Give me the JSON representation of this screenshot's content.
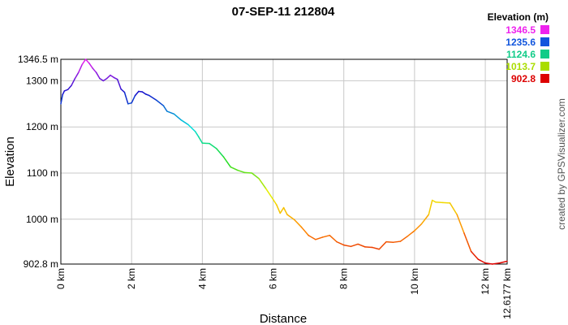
{
  "chart_data": {
    "type": "line",
    "title": "07-SEP-11 212804",
    "xlabel": "Distance",
    "ylabel": "Elevation",
    "credit": "created by GPSVisualizer.com",
    "xlim": [
      0,
      12.6177
    ],
    "ylim": [
      902.8,
      1346.5
    ],
    "x_ticks": [
      0,
      2,
      4,
      6,
      8,
      10,
      12,
      12.6177
    ],
    "x_tick_labels": [
      "0 km",
      "2 km",
      "4 km",
      "6 km",
      "8 km",
      "10 km",
      "12 km",
      "12.6177 km"
    ],
    "y_ticks": [
      902.8,
      1000,
      1100,
      1200,
      1300,
      1346.5
    ],
    "y_tick_labels": [
      "902.8 m",
      "1000 m",
      "1100 m",
      "1200 m",
      "1300 m",
      "1346.5 m"
    ],
    "grid": true,
    "legend": {
      "title": "Elevation (m)",
      "placement": "top-right",
      "entries": [
        {
          "label": "1346.5",
          "color": "#ee22ee"
        },
        {
          "label": "1235.6",
          "color": "#1155dd"
        },
        {
          "label": "1124.6",
          "color": "#11cc88"
        },
        {
          "label": "1013.7",
          "color": "#aadd00"
        },
        {
          "label": "902.8",
          "color": "#dd0000"
        }
      ]
    },
    "color_scale": {
      "min": 902.8,
      "max": 1346.5,
      "stops": [
        "#dd0000",
        "#ff8800",
        "#eeee00",
        "#22dd22",
        "#00dddd",
        "#1111cc",
        "#ee22ee"
      ]
    },
    "series": [
      {
        "x": [
          0,
          0.05,
          0.1,
          0.2,
          0.3,
          0.4,
          0.5,
          0.6,
          0.7,
          0.8,
          0.9,
          1.0,
          1.1,
          1.2,
          1.3,
          1.4,
          1.5,
          1.6,
          1.7,
          1.8,
          1.9,
          2.0,
          2.1,
          2.2,
          2.3,
          2.4,
          2.5,
          2.7,
          2.9,
          3.0,
          3.2,
          3.4,
          3.6,
          3.8,
          3.9,
          4.0,
          4.2,
          4.4,
          4.6,
          4.8,
          5.0,
          5.2,
          5.4,
          5.6,
          5.8,
          6.0,
          6.1,
          6.2,
          6.3,
          6.4,
          6.6,
          6.8,
          7.0,
          7.2,
          7.4,
          7.6,
          7.8,
          8.0,
          8.2,
          8.4,
          8.6,
          8.8,
          9.0,
          9.2,
          9.4,
          9.6,
          9.8,
          10.0,
          10.2,
          10.4,
          10.5,
          10.6,
          10.8,
          11.0,
          11.2,
          11.4,
          11.6,
          11.8,
          12.0,
          12.2,
          12.4,
          12.6177
        ],
        "y": [
          1250,
          1270,
          1278,
          1281,
          1290,
          1305,
          1318,
          1335,
          1346.5,
          1338,
          1327,
          1318,
          1305,
          1300,
          1305,
          1312,
          1307,
          1303,
          1282,
          1275,
          1250,
          1252,
          1268,
          1277,
          1276,
          1271,
          1268,
          1258,
          1246,
          1234,
          1228,
          1215,
          1205,
          1190,
          1178,
          1165,
          1164,
          1153,
          1135,
          1113,
          1106,
          1101,
          1100,
          1088,
          1066,
          1043,
          1031,
          1013,
          1025,
          1010,
          999,
          983,
          965,
          956,
          961,
          965,
          951,
          944,
          941,
          946,
          940,
          939,
          935,
          951,
          950,
          952,
          963,
          975,
          990,
          1010,
          1041,
          1037,
          1036,
          1035,
          1010,
          970,
          930,
          913,
          905,
          902.8,
          905,
          909
        ]
      }
    ]
  }
}
